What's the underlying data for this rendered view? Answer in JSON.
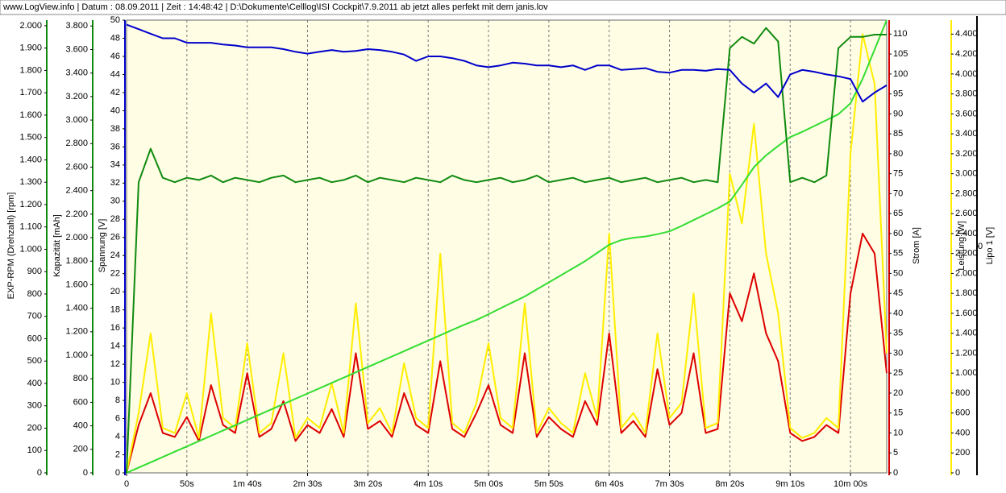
{
  "chart_data": {
    "type": "line",
    "title": "www.LogView.info   |   Datum : 08.09.2011   |   Zeit : 14:48:42   |   D:\\Dokumente\\Celllog\\ISI Cockpit\\7.9.2011 ab jetzt alles perfekt mit dem janis.lov",
    "grid": true,
    "xlim": [
      0,
      630
    ],
    "xticks": [
      0,
      {
        "value": 50,
        "label": "50s"
      },
      {
        "value": 100,
        "label": "1m 40s"
      },
      {
        "value": 150,
        "label": "2m 30s"
      },
      {
        "value": 200,
        "label": "3m 20s"
      },
      {
        "value": 250,
        "label": "4m 10s"
      },
      {
        "value": 300,
        "label": "5m 00s"
      },
      {
        "value": 350,
        "label": "5m 50s"
      },
      {
        "value": 400,
        "label": "6m 40s"
      },
      {
        "value": 450,
        "label": "7m 30s"
      },
      {
        "value": 500,
        "label": "8m 20s"
      },
      {
        "value": 550,
        "label": "9m 10s"
      },
      {
        "value": 600,
        "label": "10m 00s"
      }
    ],
    "x": [
      0,
      10,
      20,
      30,
      40,
      50,
      60,
      70,
      80,
      90,
      100,
      110,
      120,
      130,
      140,
      150,
      160,
      170,
      180,
      190,
      200,
      210,
      220,
      230,
      240,
      250,
      260,
      270,
      280,
      290,
      300,
      310,
      320,
      330,
      340,
      350,
      360,
      370,
      380,
      390,
      400,
      410,
      420,
      430,
      440,
      450,
      460,
      470,
      480,
      490,
      500,
      510,
      520,
      530,
      540,
      550,
      560,
      570,
      580,
      590,
      600,
      610,
      620,
      630
    ],
    "y_axes": [
      {
        "label": "EXP-RPM (Drehzahl) [rpm]",
        "color": "#0f8a0f",
        "lim": [
          0,
          2025
        ],
        "ticks": [
          0,
          100,
          200,
          300,
          400,
          500,
          600,
          700,
          800,
          900,
          {
            "value": 1000,
            "label": "1.000"
          },
          {
            "value": 1100,
            "label": "1.100"
          },
          {
            "value": 1200,
            "label": "1.200"
          },
          {
            "value": 1300,
            "label": "1.300"
          },
          {
            "value": 1400,
            "label": "1.400"
          },
          {
            "value": 1500,
            "label": "1.500"
          },
          {
            "value": 1600,
            "label": "1.600"
          },
          {
            "value": 1700,
            "label": "1.700"
          },
          {
            "value": 1800,
            "label": "1.800"
          },
          {
            "value": 1900,
            "label": "1.900"
          },
          {
            "value": 2000,
            "label": "2.000"
          }
        ],
        "values": [
          0,
          1300,
          1450,
          1320,
          1300,
          1320,
          1310,
          1330,
          1300,
          1320,
          1310,
          1300,
          1320,
          1330,
          1300,
          1310,
          1320,
          1300,
          1310,
          1330,
          1300,
          1320,
          1310,
          1300,
          1320,
          1310,
          1300,
          1330,
          1310,
          1300,
          1310,
          1320,
          1300,
          1310,
          1330,
          1300,
          1310,
          1320,
          1300,
          1310,
          1320,
          1300,
          1310,
          1320,
          1300,
          1310,
          1320,
          1300,
          1310,
          1300,
          1900,
          1950,
          1920,
          1990,
          1930,
          1300,
          1320,
          1300,
          1330,
          1900,
          1950,
          1950,
          1960,
          1960
        ]
      },
      {
        "label": "Kapazität [mAh]",
        "color": "#0f8a0f",
        "lim": [
          0,
          3850
        ],
        "ticks": [
          0,
          200,
          400,
          600,
          800,
          {
            "value": 1000,
            "label": "1.000"
          },
          {
            "value": 1200,
            "label": "1.200"
          },
          {
            "value": 1400,
            "label": "1.400"
          },
          {
            "value": 1600,
            "label": "1.600"
          },
          {
            "value": 1800,
            "label": "1.800"
          },
          {
            "value": 2000,
            "label": "2.000"
          },
          {
            "value": 2200,
            "label": "2.200"
          },
          {
            "value": 2400,
            "label": "2.400"
          },
          {
            "value": 2600,
            "label": "2.600"
          },
          {
            "value": 2800,
            "label": "2.800"
          },
          {
            "value": 3000,
            "label": "3.000"
          },
          {
            "value": 3200,
            "label": "3.200"
          },
          {
            "value": 3400,
            "label": "3.400"
          },
          {
            "value": 3600,
            "label": "3.600"
          },
          {
            "value": 3800,
            "label": "3.800"
          }
        ],
        "line_color": "#33dd33",
        "values": [
          0,
          45,
          90,
          135,
          180,
          225,
          270,
          315,
          360,
          405,
          450,
          495,
          540,
          585,
          630,
          675,
          720,
          765,
          810,
          855,
          900,
          945,
          990,
          1035,
          1080,
          1125,
          1170,
          1215,
          1260,
          1300,
          1349,
          1400,
          1450,
          1500,
          1560,
          1620,
          1680,
          1740,
          1800,
          1870,
          1940,
          1980,
          2000,
          2010,
          2030,
          2054,
          2100,
          2150,
          2200,
          2250,
          2307,
          2450,
          2600,
          2700,
          2780,
          2855,
          2900,
          2950,
          3000,
          3050,
          3143,
          3350,
          3600,
          3850
        ]
      },
      {
        "label": "Spannung [V]",
        "color": "#0000cc",
        "lim": [
          0,
          50
        ],
        "ticks": [
          0,
          2,
          4,
          6,
          8,
          10,
          12,
          14,
          16,
          18,
          20,
          22,
          24,
          26,
          28,
          30,
          32,
          34,
          36,
          38,
          40,
          42,
          44,
          46,
          48,
          50
        ],
        "values": [
          49.5,
          49,
          48.5,
          48,
          48,
          47.5,
          47.5,
          47.5,
          47.3,
          47.2,
          47,
          47,
          47,
          46.8,
          46.5,
          46.3,
          46.5,
          46.7,
          46.5,
          46.6,
          46.8,
          46.7,
          46.5,
          46.2,
          45.5,
          46,
          46,
          45.8,
          45.5,
          45,
          44.8,
          45,
          45.3,
          45.2,
          45,
          45,
          44.8,
          45,
          44.5,
          45,
          45,
          44.5,
          44.6,
          44.7,
          44.3,
          44.2,
          44.5,
          44.5,
          44.4,
          44.6,
          44.5,
          43,
          42,
          43,
          41.5,
          44,
          44.5,
          44.3,
          44,
          43.8,
          43.5,
          41,
          42,
          42.8
        ]
      },
      {
        "label": "Strom [A]",
        "color": "#dd0000",
        "lim": [
          0,
          113.5
        ],
        "ticks": [
          0,
          5,
          10,
          15,
          20,
          25,
          30,
          35,
          40,
          45,
          50,
          55,
          60,
          65,
          70,
          75,
          80,
          85,
          90,
          95,
          100,
          105,
          110
        ],
        "values": [
          0,
          12,
          20,
          10,
          9,
          14,
          8,
          22,
          12,
          10,
          25,
          9,
          11,
          18,
          8,
          12,
          10,
          16,
          9,
          30,
          11,
          13,
          9,
          20,
          12,
          10,
          28,
          11,
          9,
          15,
          22,
          12,
          10,
          30,
          9,
          14,
          11,
          9,
          18,
          12,
          35,
          10,
          13,
          9,
          26,
          12,
          15,
          30,
          10,
          11,
          45,
          38,
          50,
          35,
          28,
          10,
          8,
          9,
          12,
          10,
          45,
          60,
          55,
          25
        ]
      },
      {
        "label": "Leistung [W]",
        "color": "#ffee00",
        "lim": [
          0,
          4540
        ],
        "ticks": [
          0,
          200,
          400,
          600,
          800,
          {
            "value": 1000,
            "label": "1.000"
          },
          {
            "value": 1200,
            "label": "1.200"
          },
          {
            "value": 1400,
            "label": "1.400"
          },
          {
            "value": 1600,
            "label": "1.600"
          },
          {
            "value": 1800,
            "label": "1.800"
          },
          {
            "value": 2000,
            "label": "2.000"
          },
          {
            "value": 2200,
            "label": "2.200"
          },
          {
            "value": 2400,
            "label": "2.400"
          },
          {
            "value": 2600,
            "label": "2.600"
          },
          {
            "value": 2800,
            "label": "2.800"
          },
          {
            "value": 3000,
            "label": "3.000"
          },
          {
            "value": 3200,
            "label": "3.200"
          },
          {
            "value": 3400,
            "label": "3.400"
          },
          {
            "value": 3600,
            "label": "3.600"
          },
          {
            "value": 3800,
            "label": "3.800"
          },
          {
            "value": 4000,
            "label": "4.000"
          },
          {
            "value": 4200,
            "label": "4.200"
          },
          {
            "value": 4400,
            "label": "4.400"
          }
        ],
        "values": [
          0,
          600,
          1400,
          450,
          400,
          800,
          350,
          1600,
          550,
          450,
          1300,
          400,
          500,
          1200,
          350,
          550,
          450,
          900,
          400,
          1700,
          500,
          650,
          400,
          1100,
          550,
          450,
          2200,
          500,
          400,
          700,
          1300,
          550,
          450,
          1700,
          400,
          650,
          500,
          400,
          1000,
          550,
          2400,
          450,
          600,
          400,
          1400,
          550,
          700,
          1800,
          450,
          500,
          3000,
          2500,
          3500,
          2200,
          1600,
          450,
          350,
          400,
          550,
          450,
          3200,
          4400,
          3900,
          1200
        ]
      },
      {
        "label": "Lipo 1 [V]",
        "color": "#000000",
        "lim": [
          -1,
          1
        ],
        "ticks": [
          0
        ]
      }
    ]
  }
}
